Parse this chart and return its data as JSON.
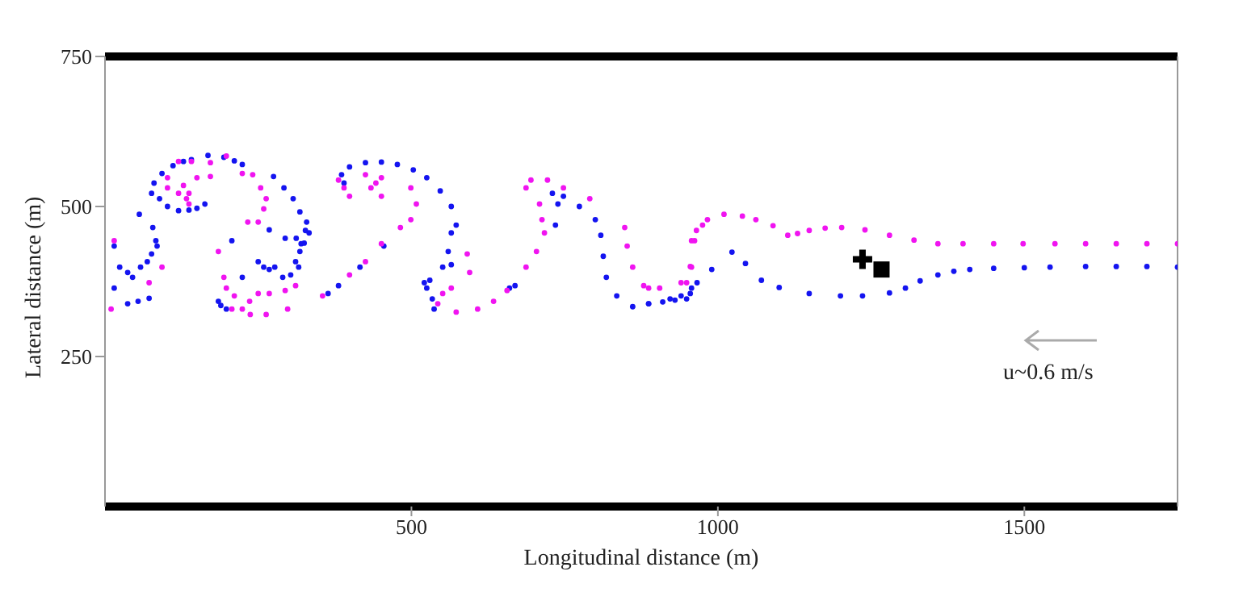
{
  "chart_data": {
    "type": "scatter",
    "xlabel": "Longitudinal distance (m)",
    "ylabel": "Lateral distance (m)",
    "xlim": [
      0,
      1750
    ],
    "ylim": [
      0,
      750
    ],
    "xticks": [
      500,
      1000,
      1500
    ],
    "yticks": [
      250,
      500,
      750
    ],
    "annotations": [
      "u~0.6 m/s"
    ],
    "series": [
      {
        "color": "#1414f0",
        "marker": "circle",
        "x": [
          76,
          80,
          93,
          111,
          128,
          141,
          168,
          194,
          211,
          224,
          89,
          102,
          120,
          137,
          150,
          163,
          56,
          15,
          24,
          37,
          45,
          58,
          69,
          76,
          85,
          83,
          78,
          15,
          37,
          54,
          72,
          275,
          292,
          307,
          318,
          329,
          333,
          325,
          318,
          312,
          294,
          268,
          250,
          259,
          268,
          277,
          290,
          303,
          316,
          224,
          207,
          185,
          198,
          189,
          390,
          386,
          399,
          425,
          451,
          477,
          503,
          525,
          547,
          565,
          573,
          565,
          560,
          551,
          565,
          530,
          521,
          525,
          534,
          537,
          327,
          320,
          311,
          455,
          416,
          381,
          364,
          730,
          748,
          774,
          800,
          809,
          813,
          818,
          835,
          861,
          887,
          922,
          940,
          957,
          739,
          735,
          669,
          660,
          887,
          910,
          930,
          949,
          955,
          966,
          990,
          1023,
          1045,
          1071,
          1100,
          1149,
          1200,
          1236,
          1280,
          1306,
          1330,
          1359,
          1385,
          1411,
          1450,
          1500,
          1542,
          1600,
          1650,
          1700,
          1750
        ],
        "values": [
          522,
          539,
          555,
          568,
          575,
          578,
          585,
          582,
          576,
          570,
          513,
          500,
          493,
          494,
          497,
          504,
          487,
          434,
          399,
          390,
          382,
          399,
          408,
          421,
          434,
          443,
          465,
          364,
          338,
          342,
          347,
          550,
          531,
          513,
          491,
          474,
          456,
          439,
          425,
          447,
          447,
          461,
          408,
          399,
          395,
          399,
          382,
          386,
          399,
          382,
          443,
          342,
          329,
          335,
          539,
          553,
          566,
          573,
          574,
          570,
          561,
          548,
          526,
          500,
          469,
          456,
          425,
          399,
          403,
          377,
          373,
          364,
          346,
          329,
          460,
          438,
          408,
          434,
          399,
          368,
          355,
          522,
          517,
          500,
          478,
          452,
          417,
          382,
          351,
          333,
          338,
          346,
          351,
          364,
          504,
          469,
          368,
          364,
          338,
          341,
          344,
          346,
          355,
          373,
          395,
          424,
          405,
          377,
          365,
          355,
          351,
          351,
          356,
          364,
          376,
          386,
          392,
          395,
          397,
          398,
          399,
          400,
          400,
          400,
          399
        ]
      },
      {
        "color": "#f014f0",
        "marker": "circle",
        "x": [
          15,
          10,
          72,
          93,
          102,
          120,
          141,
          172,
          198,
          224,
          241,
          254,
          263,
          259,
          250,
          233,
          137,
          128,
          120,
          133,
          102,
          172,
          185,
          194,
          198,
          211,
          224,
          236,
          250,
          268,
          294,
          311,
          298,
          263,
          237,
          207,
          150,
          137,
          381,
          390,
          425,
          442,
          451,
          434,
          499,
          508,
          499,
          482,
          451,
          399,
          451,
          425,
          399,
          355,
          543,
          551,
          565,
          591,
          595,
          573,
          608,
          634,
          656,
          687,
          704,
          717,
          713,
          709,
          687,
          695,
          722,
          748,
          791,
          848,
          852,
          861,
          879,
          905,
          940,
          957,
          962,
          983,
          887,
          949,
          955,
          957,
          965,
          975,
          1010,
          1040,
          1062,
          1090,
          1114,
          1130,
          1149,
          1175,
          1202,
          1240,
          1280,
          1320,
          1359,
          1400,
          1450,
          1498,
          1550,
          1600,
          1650,
          1700,
          1750
        ],
        "values": [
          443,
          329,
          373,
          399,
          548,
          575,
          575,
          573,
          584,
          555,
          553,
          531,
          513,
          496,
          474,
          474,
          522,
          535,
          522,
          513,
          531,
          550,
          425,
          382,
          364,
          351,
          329,
          342,
          355,
          355,
          360,
          368,
          329,
          320,
          320,
          329,
          548,
          504,
          544,
          531,
          553,
          539,
          517,
          531,
          531,
          504,
          478,
          465,
          548,
          517,
          438,
          408,
          386,
          351,
          338,
          355,
          364,
          421,
          390,
          324,
          329,
          342,
          360,
          399,
          425,
          456,
          478,
          504,
          531,
          544,
          544,
          531,
          513,
          465,
          434,
          399,
          368,
          364,
          373,
          399,
          443,
          478,
          364,
          373,
          400,
          443,
          460,
          469,
          487,
          484,
          478,
          468,
          452,
          455,
          460,
          464,
          465,
          461,
          452,
          444,
          438,
          438,
          438,
          438,
          438,
          438,
          438,
          438,
          438
        ]
      },
      {
        "color": "#000000",
        "marker": "cross",
        "x": [
          1236
        ],
        "values": [
          412
        ]
      },
      {
        "color": "#000000",
        "marker": "square",
        "x": [
          1267
        ],
        "values": [
          395
        ]
      }
    ]
  }
}
